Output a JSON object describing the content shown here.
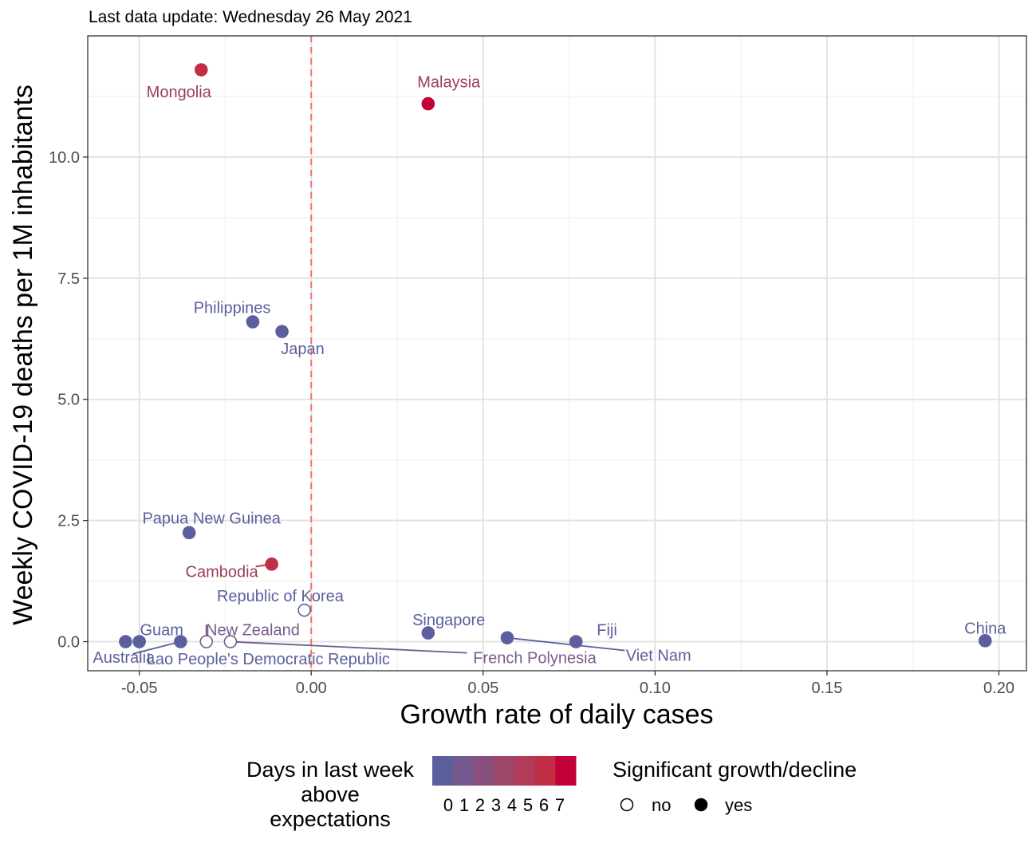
{
  "chart_data": {
    "type": "scatter",
    "subtitle": "Last data update: Wednesday 26 May 2021",
    "xlabel": "Growth rate of daily cases",
    "ylabel": "Weekly COVID-19 deaths per 1M inhabitants",
    "xlim": [
      -0.065,
      0.208
    ],
    "ylim": [
      -0.6,
      12.5
    ],
    "x_ticks": [
      -0.05,
      0.0,
      0.05,
      0.1,
      0.15,
      0.2
    ],
    "x_tick_labels": [
      "-0.05",
      "0.00",
      "0.05",
      "0.10",
      "0.15",
      "0.20"
    ],
    "y_ticks": [
      0.0,
      2.5,
      5.0,
      7.5,
      10.0
    ],
    "y_tick_labels": [
      "0.0",
      "2.5",
      "5.0",
      "7.5",
      "10.0"
    ],
    "grid": true,
    "reference_line": {
      "x": 0.0,
      "color": "#ff6b6b",
      "style": "dashed"
    },
    "points": [
      {
        "name": "Mongolia",
        "x": -0.032,
        "y": 11.8,
        "days": 5,
        "significant": true,
        "label": {
          "x": -0.0385,
          "y": 11.35
        }
      },
      {
        "name": "Malaysia",
        "x": 0.034,
        "y": 11.1,
        "days": 6,
        "significant": true,
        "label": {
          "x": 0.04,
          "y": 11.55
        }
      },
      {
        "name": "Philippines",
        "x": -0.017,
        "y": 6.6,
        "days": 0,
        "significant": true,
        "label": {
          "x": -0.023,
          "y": 6.9
        }
      },
      {
        "name": "Japan",
        "x": -0.0085,
        "y": 6.4,
        "days": 0,
        "significant": true,
        "label": {
          "x": -0.0025,
          "y": 6.05
        }
      },
      {
        "name": "Papua New Guinea",
        "x": -0.0355,
        "y": 2.25,
        "days": 0,
        "significant": true,
        "label": {
          "x": -0.029,
          "y": 2.55
        }
      },
      {
        "name": "Cambodia",
        "x": -0.0115,
        "y": 1.6,
        "days": 5,
        "significant": true,
        "label": {
          "x": -0.026,
          "y": 1.45
        }
      },
      {
        "name": "Republic of Korea",
        "x": -0.002,
        "y": 0.65,
        "days": 0,
        "significant": false,
        "label": {
          "x": -0.009,
          "y": 0.95
        }
      },
      {
        "name": "Singapore",
        "x": 0.034,
        "y": 0.18,
        "days": 0,
        "significant": true,
        "label": {
          "x": 0.04,
          "y": 0.45
        }
      },
      {
        "name": "Viet Nam",
        "x": 0.057,
        "y": 0.08,
        "days": 0,
        "significant": true,
        "label": {
          "x": 0.101,
          "y": -0.28
        }
      },
      {
        "name": "Fiji",
        "x": 0.077,
        "y": 0.0,
        "days": 0,
        "significant": true,
        "label": {
          "x": 0.086,
          "y": 0.25
        }
      },
      {
        "name": "China",
        "x": 0.196,
        "y": 0.02,
        "days": 0,
        "significant": true,
        "label": {
          "x": 0.196,
          "y": 0.28
        }
      },
      {
        "name": "Australia",
        "x": -0.054,
        "y": 0.0,
        "days": 0,
        "significant": true,
        "label": {
          "x": -0.0545,
          "y": -0.32
        }
      },
      {
        "name": "Guam",
        "x": -0.05,
        "y": 0.0,
        "days": 0,
        "significant": true,
        "label": {
          "x": -0.0435,
          "y": 0.25
        }
      },
      {
        "name": "Lao People's Democratic Republic",
        "x": -0.038,
        "y": 0.0,
        "days": 0,
        "significant": true,
        "label": {
          "x": -0.0125,
          "y": -0.35
        }
      },
      {
        "name": "New Zealand",
        "x": -0.0305,
        "y": 0.0,
        "days": 1,
        "significant": false,
        "label": {
          "x": -0.017,
          "y": 0.25
        }
      },
      {
        "name": "French Polynesia",
        "x": -0.0235,
        "y": 0.0,
        "days": 1,
        "significant": false,
        "label": {
          "x": 0.065,
          "y": -0.33
        }
      }
    ],
    "legend": {
      "placement": "bottom",
      "color_title_lines": [
        "Days in last week",
        "above",
        "expectations"
      ],
      "color_stops": [
        "#5b5f9d",
        "#745a8e",
        "#8a507d",
        "#9e466a",
        "#b13b58",
        "#c12f45",
        "#c4003a"
      ],
      "color_labels": [
        "0",
        "1",
        "2",
        "3",
        "4",
        "5",
        "6",
        "7"
      ],
      "shape_title": "Significant growth/decline",
      "shape_items": [
        {
          "label": "no",
          "filled": false
        },
        {
          "label": "yes",
          "filled": true
        }
      ]
    }
  }
}
